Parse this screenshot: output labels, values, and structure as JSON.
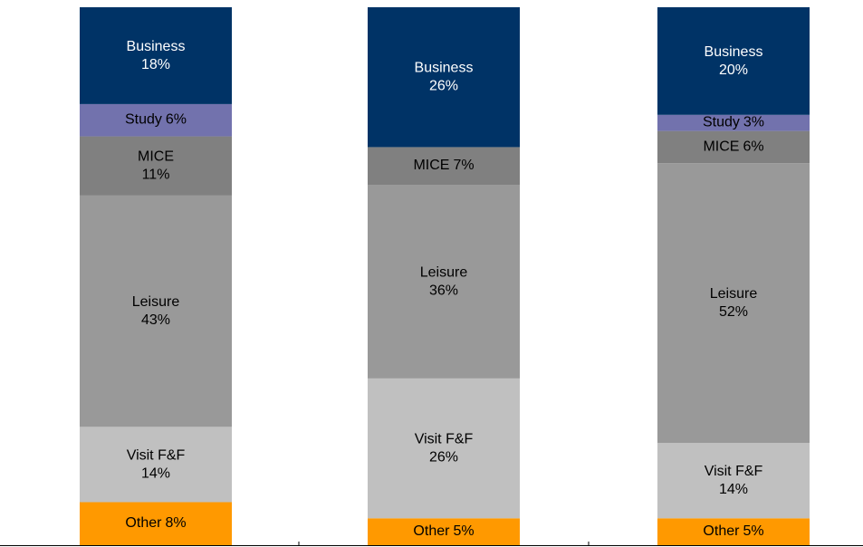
{
  "chart_data": {
    "type": "stacked-bar",
    "categories": [
      null,
      null,
      null
    ],
    "ylim": [
      0,
      100
    ],
    "series": [
      {
        "name": "Other",
        "color": "#ff9900",
        "values": [
          8,
          5,
          5
        ],
        "value_labels": [
          "8%",
          "5%",
          "5%"
        ]
      },
      {
        "name": "Visit F&F",
        "color": "#c0c0c0",
        "values": [
          14,
          26,
          14
        ],
        "value_labels": [
          "14%",
          "26%",
          "14%"
        ]
      },
      {
        "name": "Leisure",
        "color": "#999999",
        "values": [
          43,
          36,
          52
        ],
        "value_labels": [
          "43%",
          "36%",
          "52%"
        ]
      },
      {
        "name": "MICE",
        "color": "#808080",
        "values": [
          11,
          7,
          6
        ],
        "value_labels": [
          "11%",
          "7%",
          "6%"
        ]
      },
      {
        "name": "Study",
        "color": "#7272ad",
        "values": [
          6,
          null,
          3
        ],
        "value_labels": [
          "6%",
          null,
          "3%"
        ]
      },
      {
        "name": "Business",
        "color": "#003366",
        "values": [
          18,
          26,
          20
        ],
        "value_labels": [
          "18%",
          "26%",
          "20%"
        ]
      }
    ]
  }
}
